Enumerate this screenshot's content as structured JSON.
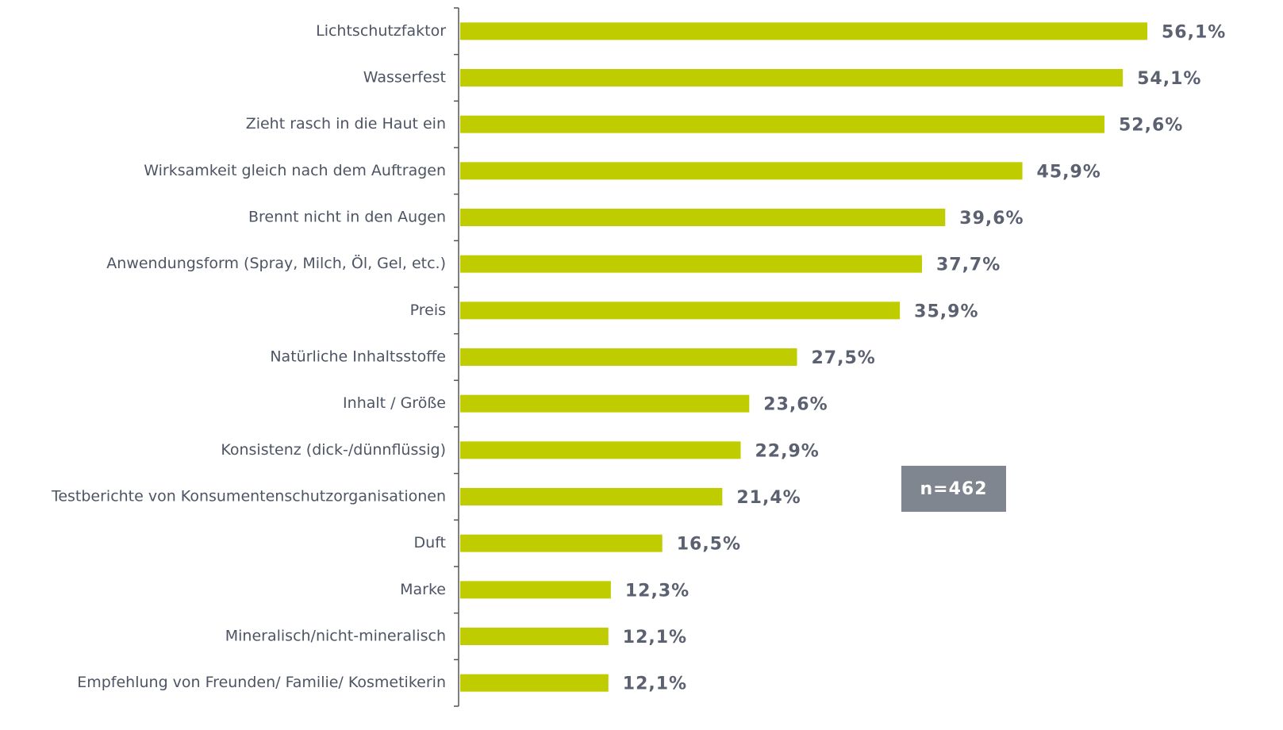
{
  "chart_data": {
    "type": "bar",
    "orientation": "horizontal",
    "color": "#bfcc00",
    "categories": [
      "Lichtschutzfaktor",
      "Wasserfest",
      "Zieht rasch in die Haut ein",
      "Wirksamkeit gleich nach dem Auftragen",
      "Brennt nicht in den Augen",
      "Anwendungsform (Spray, Milch, Öl, Gel, etc.)",
      "Preis",
      "Natürliche Inhaltsstoffe",
      "Inhalt / Größe",
      "Konsistenz (dick-/dünnflüssig)",
      "Testberichte von Konsumentenschutzorganisationen",
      "Duft",
      "Marke",
      "Mineralisch/nicht-mineralisch",
      "Empfehlung von Freunden/ Familie/ Kosmetikerin"
    ],
    "values": [
      56.1,
      54.1,
      52.6,
      45.9,
      39.6,
      37.7,
      35.9,
      27.5,
      23.6,
      22.9,
      21.4,
      16.5,
      12.3,
      12.1,
      12.1
    ],
    "value_labels": [
      "56,1%",
      "54,1%",
      "52,6%",
      "45,9%",
      "39,6%",
      "37,7%",
      "35,9%",
      "27,5%",
      "23,6%",
      "22,9%",
      "21,4%",
      "16,5%",
      "12,3%",
      "12,1%",
      "12,1%"
    ],
    "annotation": "n=462"
  }
}
